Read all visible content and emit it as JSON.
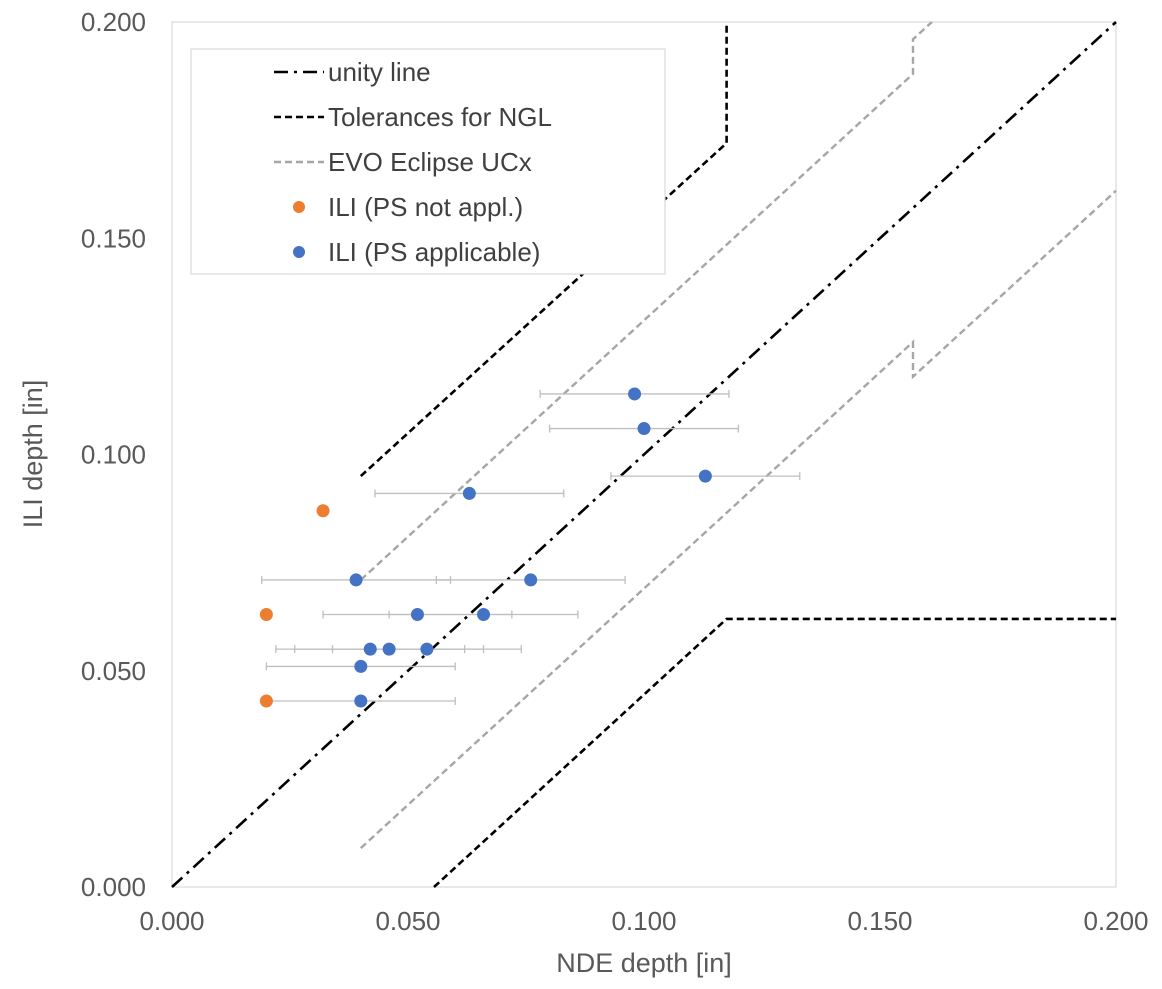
{
  "chart_data": {
    "type": "scatter",
    "xlabel": "NDE depth [in]",
    "ylabel": "ILI depth [in]",
    "xlim": [
      0,
      0.2
    ],
    "ylim": [
      0,
      0.2
    ],
    "x_ticks": [
      "0.000",
      "0.050",
      "0.100",
      "0.150",
      "0.200"
    ],
    "y_ticks": [
      "0.000",
      "0.050",
      "0.100",
      "0.150",
      "0.200"
    ],
    "grid": false,
    "legend_position": "top-left",
    "legend": [
      {
        "label": "unity line",
        "kind": "dashdot",
        "color": "#000000"
      },
      {
        "label": "Tolerances for NGL",
        "kind": "dash",
        "color": "#000000"
      },
      {
        "label": "EVO Eclipse UCx",
        "kind": "dash",
        "color": "#a6a6a6"
      },
      {
        "label": "ILI (PS not appl.)",
        "kind": "marker",
        "color": "#ed7d31"
      },
      {
        "label": "ILI (PS applicable)",
        "kind": "marker",
        "color": "#4472c4"
      }
    ],
    "lines": [
      {
        "name": "unity line",
        "style": "dashdot",
        "color": "#000000",
        "points": [
          [
            0,
            0
          ],
          [
            0.2,
            0.2
          ]
        ]
      },
      {
        "name": "Tolerances for NGL upper",
        "style": "dash",
        "color": "#000000",
        "points": [
          [
            0.04,
            0.095
          ],
          [
            0.1175,
            0.172
          ],
          [
            0.1175,
            0.2
          ]
        ]
      },
      {
        "name": "Tolerances for NGL lower",
        "style": "dash",
        "color": "#000000",
        "points": [
          [
            0.0555,
            0
          ],
          [
            0.1175,
            0.062
          ],
          [
            0.2,
            0.062
          ]
        ]
      },
      {
        "name": "EVO Eclipse UCx upper",
        "style": "dash",
        "color": "#a6a6a6",
        "points": [
          [
            0.04,
            0.071
          ],
          [
            0.157,
            0.188
          ],
          [
            0.157,
            0.196
          ],
          [
            0.161,
            0.2
          ]
        ]
      },
      {
        "name": "EVO Eclipse UCx lower",
        "style": "dash",
        "color": "#a6a6a6",
        "points": [
          [
            0.04,
            0.009
          ],
          [
            0.157,
            0.126
          ],
          [
            0.157,
            0.118
          ],
          [
            0.2,
            0.161
          ]
        ]
      }
    ],
    "series": [
      {
        "name": "ILI (PS not appl.)",
        "color": "#ed7d31",
        "points": [
          {
            "x": 0.032,
            "y": 0.087
          },
          {
            "x": 0.02,
            "y": 0.063
          },
          {
            "x": 0.02,
            "y": 0.043
          }
        ]
      },
      {
        "name": "ILI (PS applicable)",
        "color": "#4472c4",
        "points": [
          {
            "x": 0.098,
            "y": 0.114,
            "xerr": 0.02
          },
          {
            "x": 0.1,
            "y": 0.106,
            "xerr": 0.02
          },
          {
            "x": 0.113,
            "y": 0.095,
            "xerr": 0.02
          },
          {
            "x": 0.063,
            "y": 0.091,
            "xerr": 0.02
          },
          {
            "x": 0.039,
            "y": 0.071,
            "xerr": 0.02
          },
          {
            "x": 0.076,
            "y": 0.071,
            "xerr": 0.02
          },
          {
            "x": 0.052,
            "y": 0.063,
            "xerr": 0.02
          },
          {
            "x": 0.066,
            "y": 0.063,
            "xerr": 0.02
          },
          {
            "x": 0.042,
            "y": 0.055,
            "xerr": 0.02
          },
          {
            "x": 0.046,
            "y": 0.055,
            "xerr": 0.02
          },
          {
            "x": 0.054,
            "y": 0.055,
            "xerr": 0.02
          },
          {
            "x": 0.04,
            "y": 0.051,
            "xerr": 0.02
          },
          {
            "x": 0.04,
            "y": 0.043,
            "xerr": 0.02
          }
        ]
      }
    ]
  }
}
